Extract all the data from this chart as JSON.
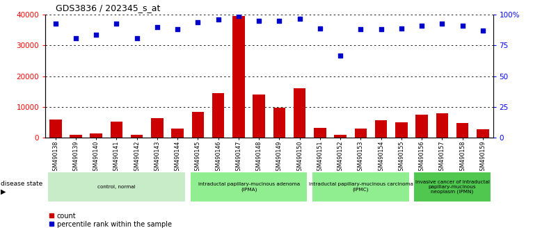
{
  "title": "GDS3836 / 202345_s_at",
  "samples": [
    "GSM490138",
    "GSM490139",
    "GSM490140",
    "GSM490141",
    "GSM490142",
    "GSM490143",
    "GSM490144",
    "GSM490145",
    "GSM490146",
    "GSM490147",
    "GSM490148",
    "GSM490149",
    "GSM490150",
    "GSM490151",
    "GSM490152",
    "GSM490153",
    "GSM490154",
    "GSM490155",
    "GSM490156",
    "GSM490157",
    "GSM490158",
    "GSM490159"
  ],
  "counts": [
    6000,
    900,
    1400,
    5300,
    1000,
    6300,
    3000,
    8400,
    14500,
    39500,
    14000,
    9700,
    16000,
    3200,
    900,
    3000,
    5700,
    5000,
    7500,
    8000,
    4900,
    2700
  ],
  "percentiles": [
    93,
    81,
    84,
    93,
    81,
    90,
    88,
    94,
    96,
    99,
    95,
    95,
    97,
    89,
    67,
    88,
    88,
    89,
    91,
    93,
    91,
    87
  ],
  "groups": [
    {
      "label": "control, normal",
      "start": 0,
      "end": 6,
      "color": "#c8ecc8"
    },
    {
      "label": "intraductal papillary-mucinous adenoma\n(IPMA)",
      "start": 7,
      "end": 12,
      "color": "#90ee90"
    },
    {
      "label": "intraductal papillary-mucinous carcinoma\n(IPMC)",
      "start": 13,
      "end": 17,
      "color": "#90ee90"
    },
    {
      "label": "invasive cancer of intraductal\npapillary-mucinous\nneoplasm (IPMN)",
      "start": 18,
      "end": 21,
      "color": "#50c850"
    }
  ],
  "bar_color": "#cc0000",
  "dot_color": "#0000cc",
  "ylim_left": [
    0,
    40000
  ],
  "ylim_right": [
    0,
    100
  ],
  "yticks_left": [
    0,
    10000,
    20000,
    30000,
    40000
  ],
  "yticks_right": [
    0,
    25,
    50,
    75,
    100
  ],
  "yticklabels_left": [
    "0",
    "10000",
    "20000",
    "30000",
    "40000"
  ],
  "yticklabels_right": [
    "0",
    "25",
    "50",
    "75",
    "100%"
  ],
  "grid_lines": [
    10000,
    20000,
    30000,
    40000
  ],
  "background_color": "#ffffff",
  "legend_count_label": "count",
  "legend_pct_label": "percentile rank within the sample"
}
